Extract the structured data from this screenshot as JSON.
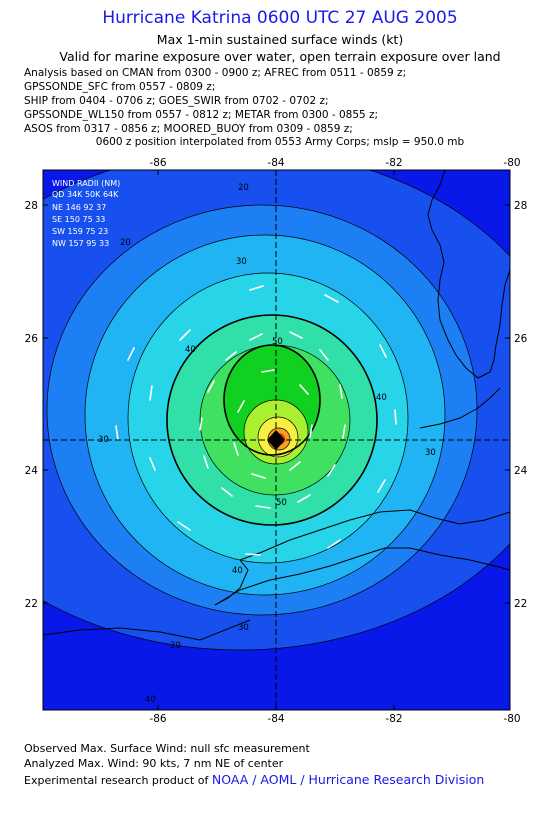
{
  "header": {
    "title": "Hurricane Katrina 0600 UTC 27 AUG 2005",
    "subtitle": "Max 1-min sustained surface winds (kt)",
    "valid_for": "Valid for marine exposure over water, open terrain exposure over land"
  },
  "analysis_lines": [
    "Analysis based on  CMAN from 0300 - 0900 z;  AFREC from 0511 - 0859 z;",
    "GPSSONDE_SFC from 0557 - 0809 z;",
    "SHIP from 0404 - 0706 z;  GOES_SWIR from 0702 - 0702 z;",
    "GPSSONDE_WL150 from 0557 - 0812 z;  METAR from 0300 - 0855 z;",
    "ASOS from 0317 - 0856 z;  MOORED_BUOY from 0309 - 0859 z;"
  ],
  "position_line": "0600 z position interpolated from 0553 Army Corps; mslp = 950.0 mb",
  "map": {
    "lon_ticks": [
      "-86",
      "-84",
      "-82",
      "-80"
    ],
    "lat_ticks": [
      "28",
      "26",
      "24",
      "22"
    ],
    "center_lon": -84.0,
    "center_lat": 24.4,
    "contour_labels": [
      "20",
      "30",
      "40",
      "50",
      "30",
      "40",
      "50",
      "30",
      "40",
      "30",
      "20",
      "20",
      "40"
    ],
    "colors": {
      "outer": "#0818e8",
      "ring2": "#1850f0",
      "ring3": "#1c80f4",
      "ring4": "#20b4f4",
      "ring5": "#28d4e8",
      "ring6": "#30e0a8",
      "ring7": "#40e060",
      "ring8": "#10d020",
      "ring9": "#a8f030",
      "ring10": "#f8f040",
      "ring11": "#f8a020",
      "core": "#e83020",
      "land_line": "#000000",
      "vectors": "#ffffff"
    }
  },
  "wind_radii": {
    "title": "WIND RADII (NM)",
    "header": "QD  34K  50K  64K",
    "rows": [
      "NE  146   92   37",
      "SE  150   75   33",
      "SW  159   75   23",
      "NW  157   95   33"
    ]
  },
  "footer": {
    "observed": "Observed Max. Surface Wind: null sfc measurement",
    "analyzed": "Analyzed Max. Wind: 90 kts, 7 nm NE of center",
    "research_prefix": "Experimental research product of",
    "research_org": "NOAA / AOML / Hurricane Research Division"
  }
}
